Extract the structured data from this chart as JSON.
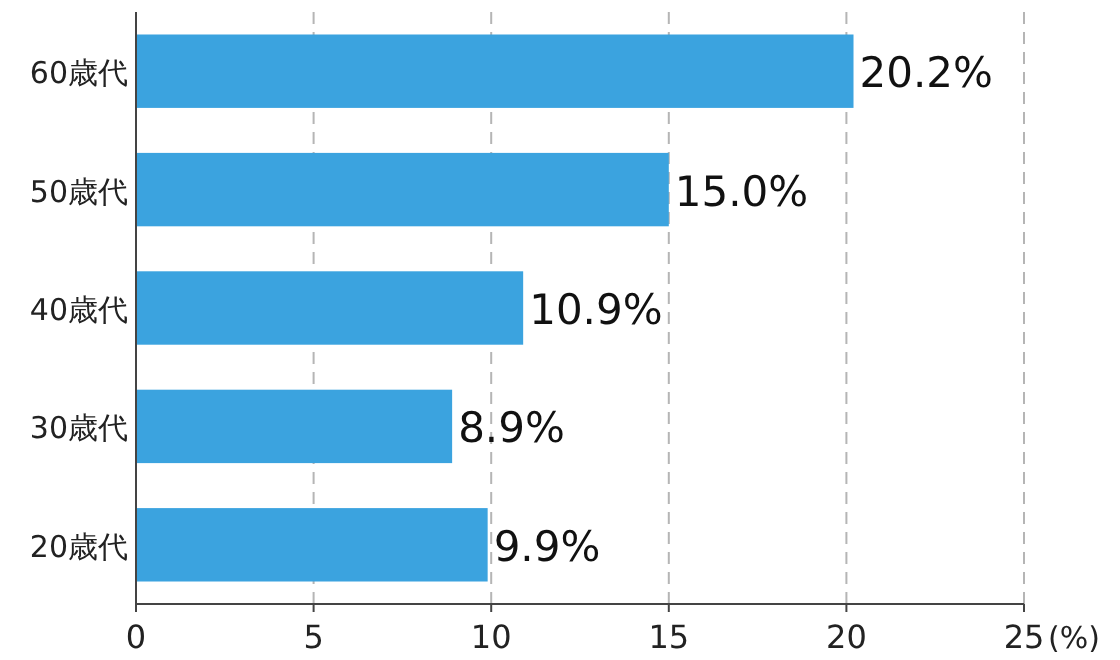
{
  "chart_data": {
    "type": "bar",
    "orientation": "horizontal",
    "categories": [
      "60歳代",
      "50歳代",
      "40歳代",
      "30歳代",
      "20歳代"
    ],
    "values": [
      20.2,
      15.0,
      10.9,
      8.9,
      9.9
    ],
    "value_labels": [
      "20.2%",
      "15.0%",
      "10.9%",
      "8.9%",
      "9.9%"
    ],
    "color": "#3ba3df",
    "xlim": [
      0,
      25
    ],
    "xticks": [
      0,
      5,
      10,
      15,
      20,
      25
    ],
    "xlabel": "(%)",
    "grid": "x"
  }
}
